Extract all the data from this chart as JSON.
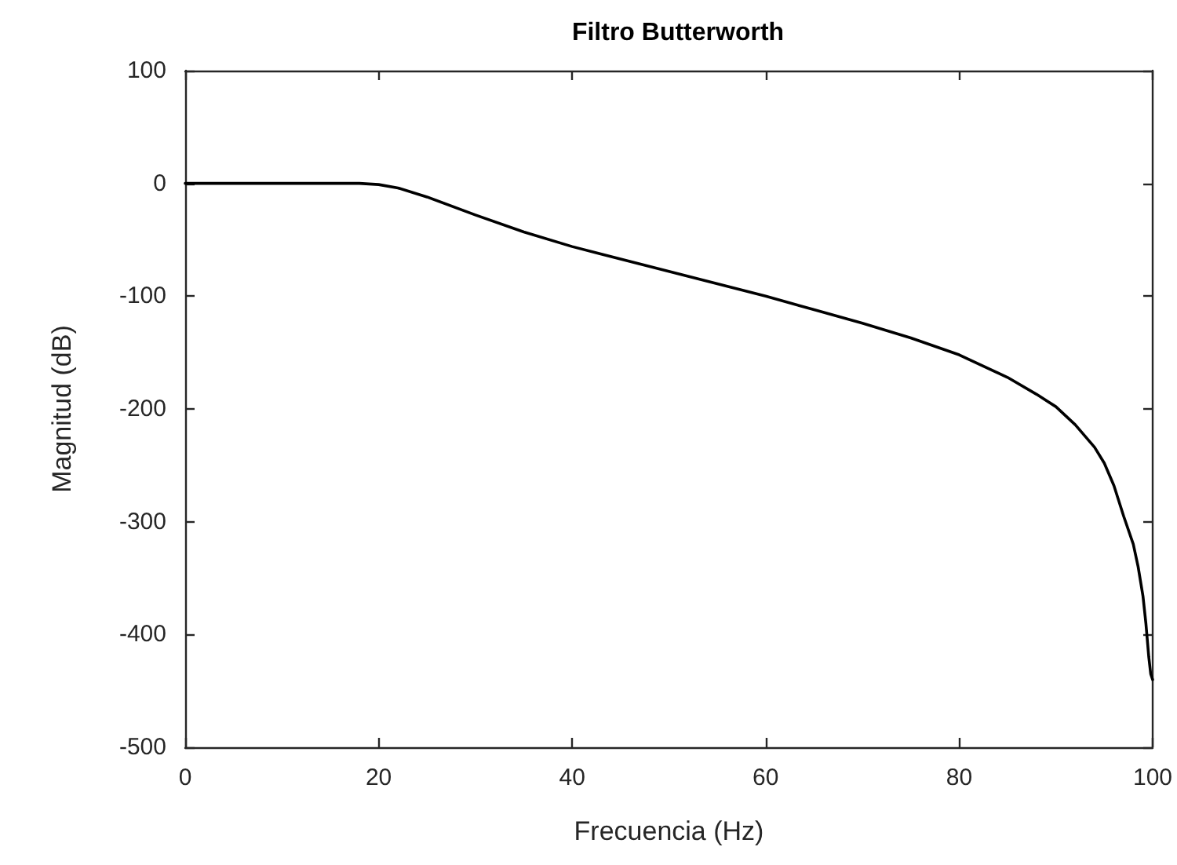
{
  "chart_data": {
    "type": "line",
    "title": "Filtro Butterworth",
    "xlabel": "Frecuencia (Hz)",
    "ylabel": "Magnitud (dB)",
    "x": [
      0,
      5,
      10,
      15,
      18,
      20,
      22,
      25,
      30,
      35,
      40,
      45,
      50,
      55,
      60,
      65,
      70,
      75,
      80,
      85,
      88,
      90,
      92,
      94,
      95,
      96,
      97,
      98,
      98.5,
      99,
      99.3,
      99.6,
      99.8,
      100
    ],
    "series": [
      {
        "color": "#000000",
        "values": [
          0,
          0,
          0,
          0,
          0,
          -1,
          -4,
          -12,
          -28,
          -43,
          -56,
          -67,
          -78,
          -89,
          -100,
          -112,
          -124,
          -137,
          -152,
          -172,
          -187,
          -198,
          -214,
          -234,
          -248,
          -268,
          -295,
          -320,
          -340,
          -366,
          -390,
          -420,
          -435,
          -440
        ]
      }
    ],
    "xlim": [
      0,
      100
    ],
    "ylim": [
      -500,
      100
    ],
    "xticks": [
      0,
      20,
      40,
      60,
      80,
      100
    ],
    "yticks": [
      -500,
      -400,
      -300,
      -200,
      -100,
      0,
      100
    ],
    "marker": "none",
    "line_style": "solid"
  }
}
